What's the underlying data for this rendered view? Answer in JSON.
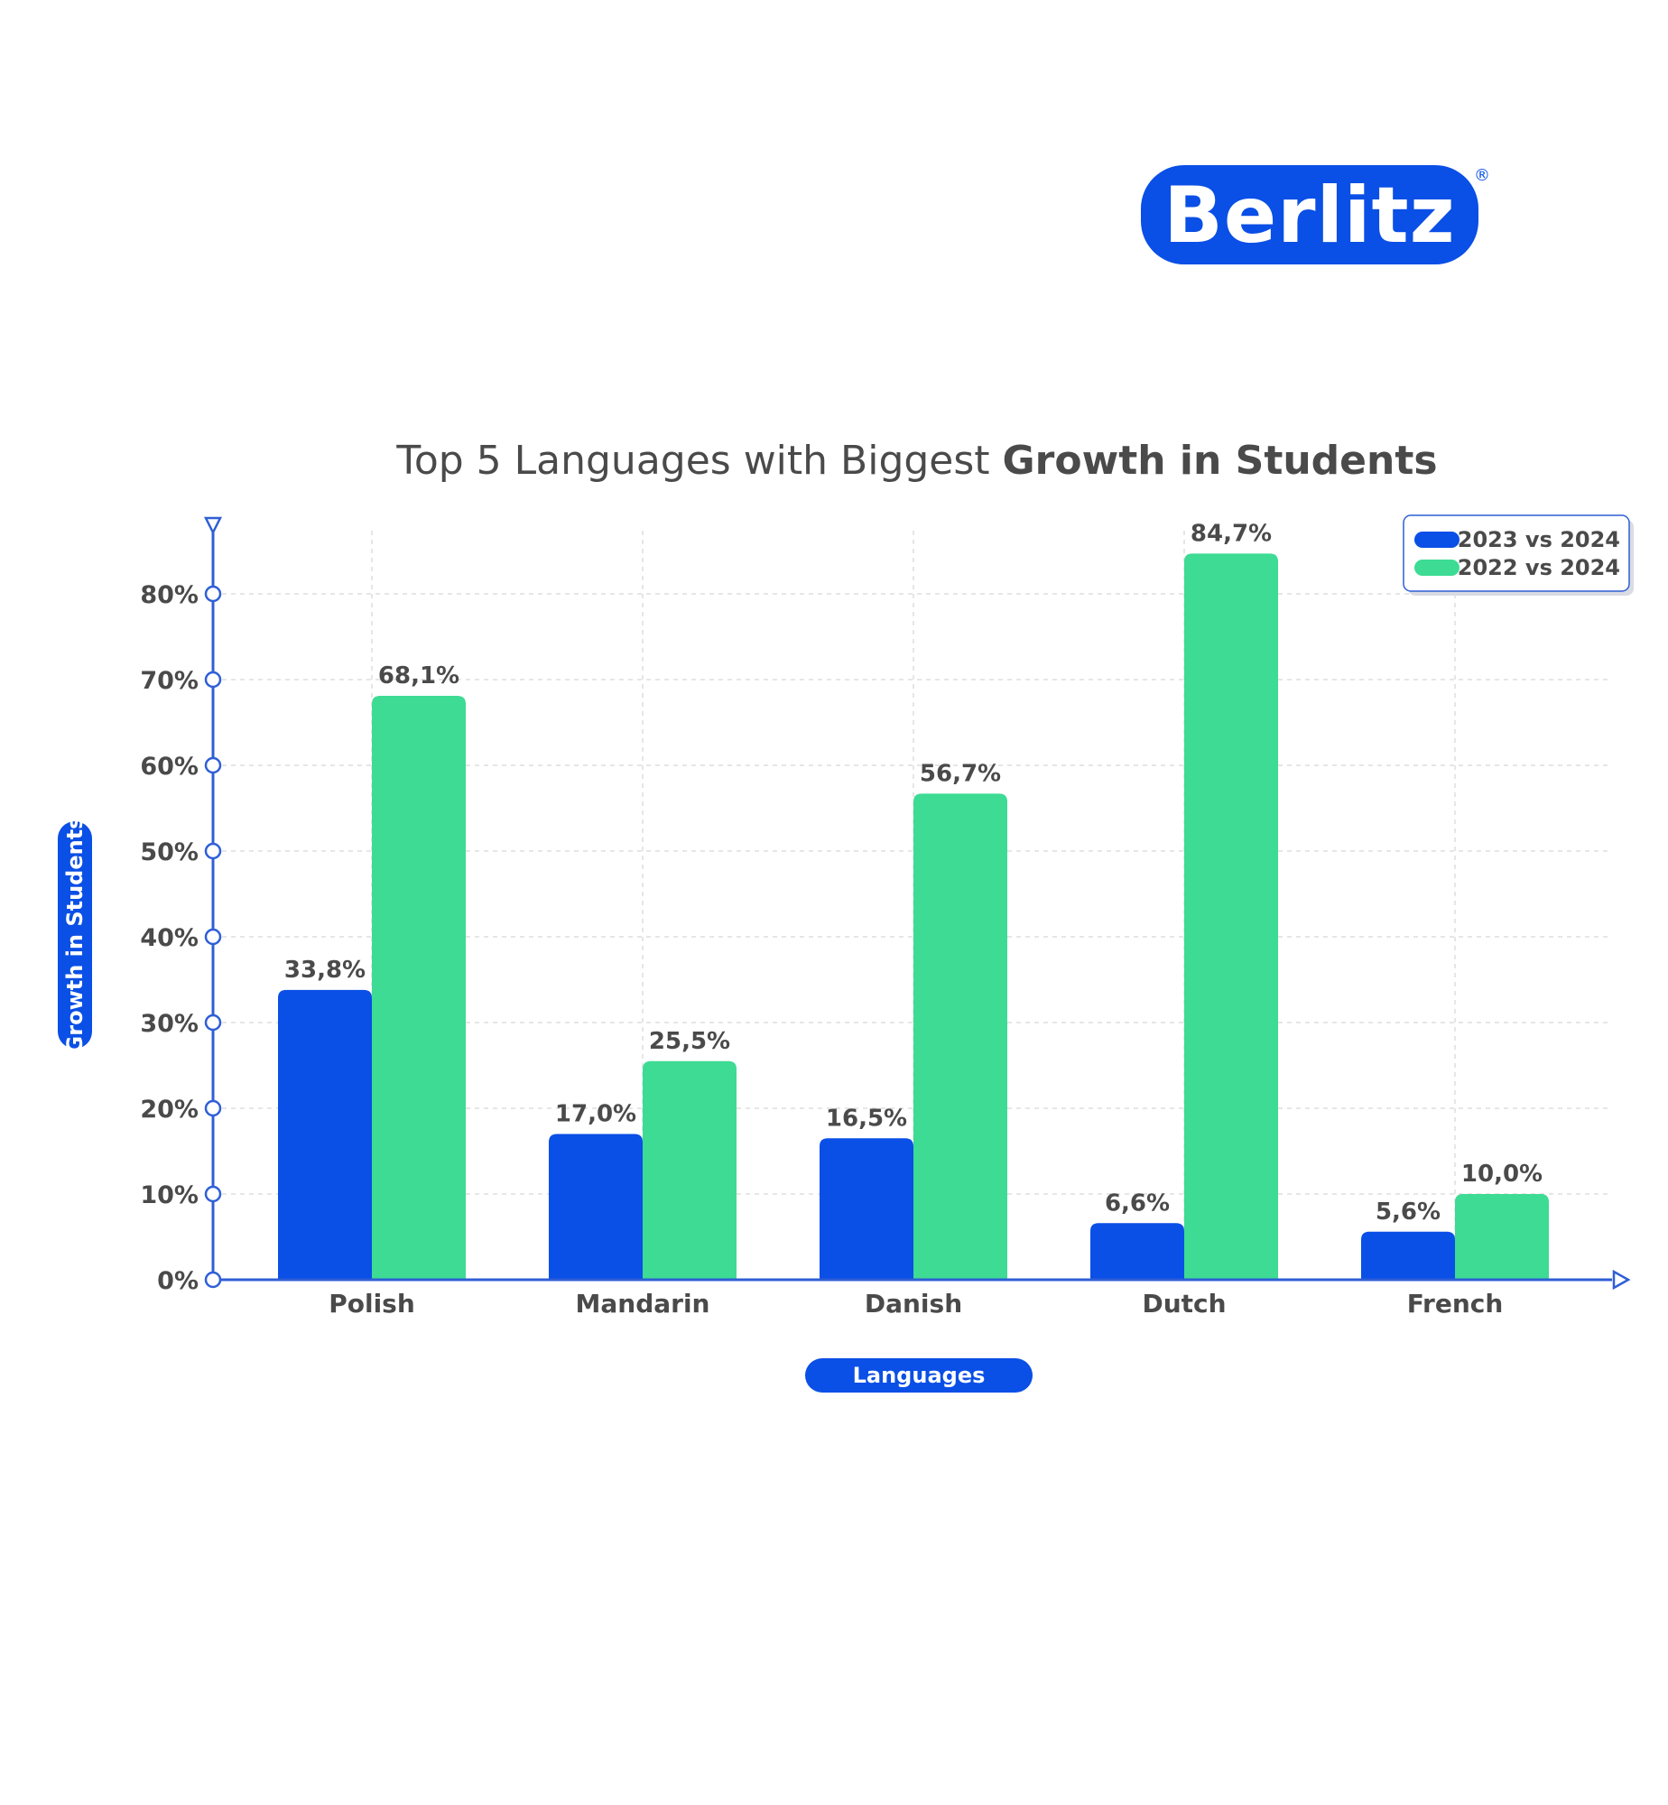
{
  "brand": {
    "name": "Berlitz",
    "registered_mark": "®",
    "color": "#0a4fe6"
  },
  "chart_data": {
    "type": "bar",
    "title_regular": "Top 5 Languages with Biggest ",
    "title_bold": "Growth in Students",
    "xlabel": "Languages",
    "ylabel": "Growth in Students",
    "categories": [
      "Polish",
      "Mandarin",
      "Danish",
      "Dutch",
      "French"
    ],
    "series": [
      {
        "name": "2023 vs 2024",
        "color": "#0a4fe6",
        "values": [
          33.8,
          17.0,
          16.5,
          6.6,
          5.6
        ],
        "labels": [
          "33,8%",
          "17,0%",
          "16,5%",
          "6,6%",
          "5,6%"
        ]
      },
      {
        "name": "2022 vs 2024",
        "color": "#3ddb93",
        "values": [
          68.1,
          25.5,
          56.7,
          84.7,
          10.0
        ],
        "labels": [
          "68,1%",
          "25,5%",
          "56,7%",
          "84,7%",
          "10,0%"
        ]
      }
    ],
    "yticks": [
      0,
      10,
      20,
      30,
      40,
      50,
      60,
      70,
      80
    ],
    "ytick_labels": [
      "0%",
      "10%",
      "20%",
      "30%",
      "40%",
      "50%",
      "60%",
      "70%",
      "80%"
    ],
    "ylim": [
      0,
      85
    ],
    "grid": true,
    "legend_position": "top-right",
    "axis_color": "#2f5fd6"
  }
}
